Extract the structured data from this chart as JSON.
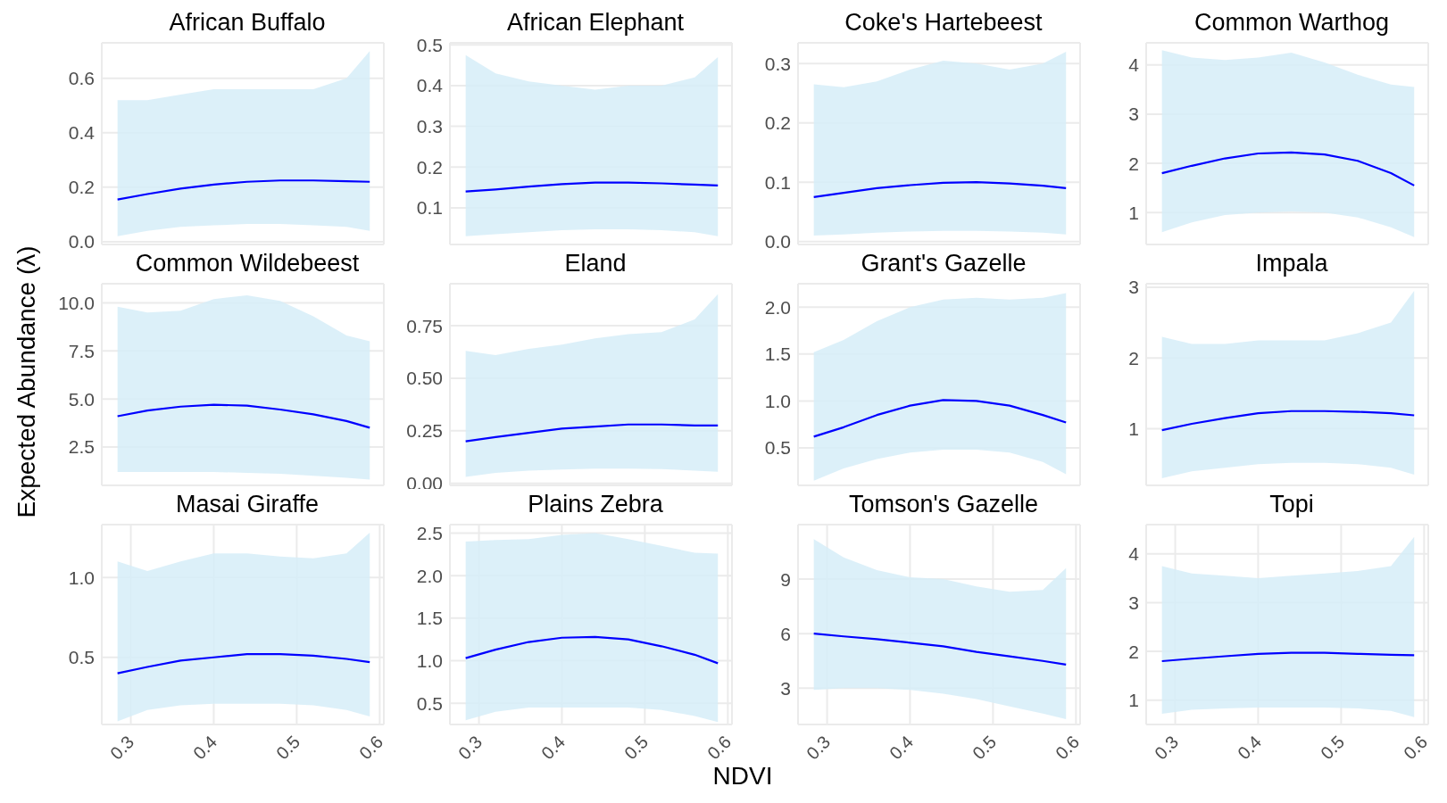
{
  "chart_data": [
    {
      "type": "line",
      "title": "African Buffalo",
      "x": [
        0.284,
        0.32,
        0.36,
        0.4,
        0.44,
        0.48,
        0.52,
        0.56,
        0.588
      ],
      "xlim": [
        0.265,
        0.605
      ],
      "xticks": [
        0.3,
        0.4,
        0.5,
        0.6
      ],
      "ylim": [
        -0.01,
        0.73
      ],
      "yticks": [
        {
          "value": 0,
          "label": "0.0"
        },
        0.2,
        0.4,
        0.6
      ],
      "grid": true,
      "tick_labels": "y",
      "series": [
        {
          "color": "#0000ff",
          "values": [
            0.155,
            0.175,
            0.195,
            0.21,
            0.22,
            0.225,
            0.225,
            0.222,
            0.22
          ],
          "lower": [
            0.02,
            0.04,
            0.055,
            0.06,
            0.065,
            0.065,
            0.06,
            0.055,
            0.04
          ],
          "upper": [
            0.52,
            0.52,
            0.54,
            0.56,
            0.56,
            0.56,
            0.56,
            0.6,
            0.7
          ]
        }
      ]
    },
    {
      "type": "line",
      "title": "African Elephant",
      "x": [
        0.284,
        0.32,
        0.36,
        0.4,
        0.44,
        0.48,
        0.52,
        0.56,
        0.588
      ],
      "xlim": [
        0.265,
        0.605
      ],
      "xticks": [
        0.3,
        0.4,
        0.5,
        0.6
      ],
      "ylim": [
        0.01,
        0.505
      ],
      "yticks": [
        0.1,
        0.2,
        0.3,
        0.4,
        0.5
      ],
      "grid": true,
      "tick_labels": "y",
      "series": [
        {
          "color": "#0000ff",
          "values": [
            0.14,
            0.145,
            0.152,
            0.158,
            0.162,
            0.162,
            0.16,
            0.157,
            0.155
          ],
          "lower": [
            0.03,
            0.035,
            0.04,
            0.045,
            0.047,
            0.047,
            0.045,
            0.04,
            0.03
          ],
          "upper": [
            0.475,
            0.43,
            0.41,
            0.4,
            0.39,
            0.4,
            0.4,
            0.42,
            0.47
          ]
        }
      ]
    },
    {
      "type": "line",
      "title": "Coke's Hartebeest",
      "x": [
        0.284,
        0.32,
        0.36,
        0.4,
        0.44,
        0.48,
        0.52,
        0.56,
        0.588
      ],
      "xlim": [
        0.265,
        0.605
      ],
      "xticks": [
        0.3,
        0.4,
        0.5,
        0.6
      ],
      "ylim": [
        -0.005,
        0.335
      ],
      "yticks": [
        {
          "value": 0,
          "label": "0.0"
        },
        0.1,
        0.2,
        0.3
      ],
      "grid": true,
      "tick_labels": "y",
      "series": [
        {
          "color": "#0000ff",
          "values": [
            0.075,
            0.082,
            0.09,
            0.095,
            0.099,
            0.1,
            0.098,
            0.094,
            0.09
          ],
          "lower": [
            0.01,
            0.012,
            0.015,
            0.017,
            0.018,
            0.018,
            0.017,
            0.015,
            0.012
          ],
          "upper": [
            0.265,
            0.26,
            0.27,
            0.29,
            0.305,
            0.3,
            0.29,
            0.3,
            0.32
          ]
        }
      ]
    },
    {
      "type": "line",
      "title": "Common Warthog",
      "x": [
        0.284,
        0.32,
        0.36,
        0.4,
        0.44,
        0.48,
        0.52,
        0.56,
        0.588
      ],
      "xlim": [
        0.265,
        0.605
      ],
      "xticks": [
        0.3,
        0.4,
        0.5,
        0.6
      ],
      "ylim": [
        0.35,
        4.45
      ],
      "yticks": [
        1,
        2,
        3,
        4
      ],
      "grid": true,
      "tick_labels": "y",
      "series": [
        {
          "color": "#0000ff",
          "values": [
            1.8,
            1.95,
            2.1,
            2.2,
            2.22,
            2.18,
            2.05,
            1.8,
            1.55
          ],
          "lower": [
            0.6,
            0.8,
            0.95,
            1.0,
            1.02,
            1.0,
            0.9,
            0.7,
            0.5
          ],
          "upper": [
            4.3,
            4.15,
            4.1,
            4.15,
            4.25,
            4.05,
            3.8,
            3.6,
            3.55
          ]
        }
      ]
    },
    {
      "type": "line",
      "title": "Common Wildebeest",
      "ylabel": "Expected Abundance (λ)",
      "x": [
        0.284,
        0.32,
        0.36,
        0.4,
        0.44,
        0.48,
        0.52,
        0.56,
        0.588
      ],
      "xlim": [
        0.265,
        0.605
      ],
      "xticks": [
        0.3,
        0.4,
        0.5,
        0.6
      ],
      "ylim": [
        0.5,
        11
      ],
      "yticks": [
        2.5,
        {
          "value": 5,
          "label": "5.0"
        },
        7.5,
        {
          "value": 10,
          "label": "10.0"
        }
      ],
      "grid": true,
      "tick_labels": "y",
      "series": [
        {
          "color": "#0000ff",
          "values": [
            4.1,
            4.4,
            4.6,
            4.7,
            4.65,
            4.45,
            4.2,
            3.85,
            3.5
          ],
          "lower": [
            1.2,
            1.2,
            1.2,
            1.2,
            1.15,
            1.1,
            1.0,
            0.9,
            0.8
          ],
          "upper": [
            9.8,
            9.5,
            9.6,
            10.2,
            10.4,
            10.1,
            9.3,
            8.3,
            8.0
          ]
        }
      ]
    },
    {
      "type": "line",
      "title": "Eland",
      "x": [
        0.284,
        0.32,
        0.36,
        0.4,
        0.44,
        0.48,
        0.52,
        0.56,
        0.588
      ],
      "xlim": [
        0.265,
        0.605
      ],
      "xticks": [
        0.3,
        0.4,
        0.5,
        0.6
      ],
      "ylim": [
        -0.01,
        0.95
      ],
      "yticks": [
        {
          "value": 0,
          "label": "0.00"
        },
        0.25,
        {
          "value": 0.5,
          "label": "0.50"
        },
        0.75
      ],
      "grid": true,
      "tick_labels": "y",
      "series": [
        {
          "color": "#0000ff",
          "values": [
            0.2,
            0.22,
            0.24,
            0.26,
            0.27,
            0.28,
            0.28,
            0.275,
            0.275
          ],
          "lower": [
            0.03,
            0.05,
            0.06,
            0.065,
            0.07,
            0.07,
            0.068,
            0.06,
            0.055
          ],
          "upper": [
            0.63,
            0.61,
            0.64,
            0.66,
            0.69,
            0.71,
            0.72,
            0.78,
            0.9
          ]
        }
      ]
    },
    {
      "type": "line",
      "title": "Grant's Gazelle",
      "x": [
        0.284,
        0.32,
        0.36,
        0.4,
        0.44,
        0.48,
        0.52,
        0.56,
        0.588
      ],
      "xlim": [
        0.265,
        0.605
      ],
      "xticks": [
        0.3,
        0.4,
        0.5,
        0.6
      ],
      "ylim": [
        0.1,
        2.25
      ],
      "yticks": [
        0.5,
        {
          "value": 1,
          "label": "1.0"
        },
        1.5,
        {
          "value": 2,
          "label": "2.0"
        }
      ],
      "grid": true,
      "tick_labels": "y",
      "series": [
        {
          "color": "#0000ff",
          "values": [
            0.62,
            0.72,
            0.85,
            0.95,
            1.01,
            1.0,
            0.95,
            0.85,
            0.77
          ],
          "lower": [
            0.15,
            0.28,
            0.38,
            0.45,
            0.48,
            0.48,
            0.45,
            0.35,
            0.22
          ],
          "upper": [
            1.52,
            1.65,
            1.85,
            2.0,
            2.08,
            2.1,
            2.08,
            2.1,
            2.15
          ]
        }
      ]
    },
    {
      "type": "line",
      "title": "Impala",
      "x": [
        0.284,
        0.32,
        0.36,
        0.4,
        0.44,
        0.48,
        0.52,
        0.56,
        0.588
      ],
      "xlim": [
        0.265,
        0.605
      ],
      "xticks": [
        0.3,
        0.4,
        0.5,
        0.6
      ],
      "ylim": [
        0.2,
        3.05
      ],
      "yticks": [
        1,
        2,
        3
      ],
      "grid": true,
      "tick_labels": "y",
      "series": [
        {
          "color": "#0000ff",
          "values": [
            0.98,
            1.07,
            1.15,
            1.22,
            1.25,
            1.25,
            1.24,
            1.22,
            1.19
          ],
          "lower": [
            0.3,
            0.4,
            0.45,
            0.5,
            0.52,
            0.52,
            0.5,
            0.45,
            0.35
          ],
          "upper": [
            2.3,
            2.2,
            2.2,
            2.25,
            2.25,
            2.25,
            2.35,
            2.5,
            2.95
          ]
        }
      ]
    },
    {
      "type": "line",
      "title": "Masai Giraffe",
      "x": [
        0.284,
        0.32,
        0.36,
        0.4,
        0.44,
        0.48,
        0.52,
        0.56,
        0.588
      ],
      "xlim": [
        0.265,
        0.605
      ],
      "xticks": [
        0.3,
        0.4,
        0.5,
        0.6
      ],
      "ylim": [
        0.08,
        1.33
      ],
      "yticks": [
        0.5,
        {
          "value": 1,
          "label": "1.0"
        }
      ],
      "grid": true,
      "series": [
        {
          "color": "#0000ff",
          "values": [
            0.4,
            0.44,
            0.48,
            0.5,
            0.52,
            0.52,
            0.51,
            0.49,
            0.47
          ],
          "lower": [
            0.1,
            0.17,
            0.2,
            0.21,
            0.21,
            0.21,
            0.2,
            0.17,
            0.13
          ],
          "upper": [
            1.1,
            1.04,
            1.1,
            1.15,
            1.15,
            1.13,
            1.12,
            1.15,
            1.28
          ]
        }
      ]
    },
    {
      "type": "line",
      "title": "Plains Zebra",
      "xlabel": "NDVI",
      "x": [
        0.284,
        0.32,
        0.36,
        0.4,
        0.44,
        0.48,
        0.52,
        0.56,
        0.588
      ],
      "xlim": [
        0.265,
        0.605
      ],
      "xticks": [
        0.3,
        0.4,
        0.5,
        0.6
      ],
      "ylim": [
        0.25,
        2.6
      ],
      "yticks": [
        0.5,
        {
          "value": 1,
          "label": "1.0"
        },
        1.5,
        {
          "value": 2,
          "label": "2.0"
        },
        2.5
      ],
      "grid": true,
      "series": [
        {
          "color": "#0000ff",
          "values": [
            1.03,
            1.13,
            1.22,
            1.27,
            1.28,
            1.25,
            1.17,
            1.07,
            0.97
          ],
          "lower": [
            0.3,
            0.4,
            0.45,
            0.45,
            0.45,
            0.45,
            0.42,
            0.35,
            0.28
          ],
          "upper": [
            2.4,
            2.42,
            2.43,
            2.48,
            2.5,
            2.43,
            2.35,
            2.27,
            2.26
          ]
        }
      ]
    },
    {
      "type": "line",
      "title": "Tomson's Gazelle",
      "x": [
        0.284,
        0.32,
        0.36,
        0.4,
        0.44,
        0.48,
        0.52,
        0.56,
        0.588
      ],
      "xlim": [
        0.265,
        0.605
      ],
      "xticks": [
        0.3,
        0.4,
        0.5,
        0.6
      ],
      "ylim": [
        1,
        12
      ],
      "yticks": [
        3,
        6,
        9
      ],
      "grid": true,
      "series": [
        {
          "color": "#0000ff",
          "values": [
            6.0,
            5.85,
            5.7,
            5.5,
            5.3,
            5.0,
            4.75,
            4.5,
            4.3
          ],
          "lower": [
            2.9,
            3.0,
            3.0,
            2.9,
            2.7,
            2.4,
            2.0,
            1.6,
            1.3
          ],
          "upper": [
            11.2,
            10.2,
            9.5,
            9.1,
            9.0,
            8.6,
            8.3,
            8.4,
            9.6
          ]
        }
      ]
    },
    {
      "type": "line",
      "title": "Topi",
      "x": [
        0.284,
        0.32,
        0.36,
        0.4,
        0.44,
        0.48,
        0.52,
        0.56,
        0.588
      ],
      "xlim": [
        0.265,
        0.605
      ],
      "xticks": [
        0.3,
        0.4,
        0.5,
        0.6
      ],
      "ylim": [
        0.5,
        4.6
      ],
      "yticks": [
        1,
        2,
        3,
        4
      ],
      "grid": true,
      "series": [
        {
          "color": "#0000ff",
          "values": [
            1.8,
            1.85,
            1.9,
            1.95,
            1.97,
            1.97,
            1.95,
            1.93,
            1.92
          ],
          "lower": [
            0.72,
            0.8,
            0.83,
            0.85,
            0.85,
            0.85,
            0.83,
            0.78,
            0.65
          ],
          "upper": [
            3.75,
            3.6,
            3.55,
            3.5,
            3.55,
            3.6,
            3.65,
            3.75,
            4.35
          ]
        }
      ]
    }
  ]
}
